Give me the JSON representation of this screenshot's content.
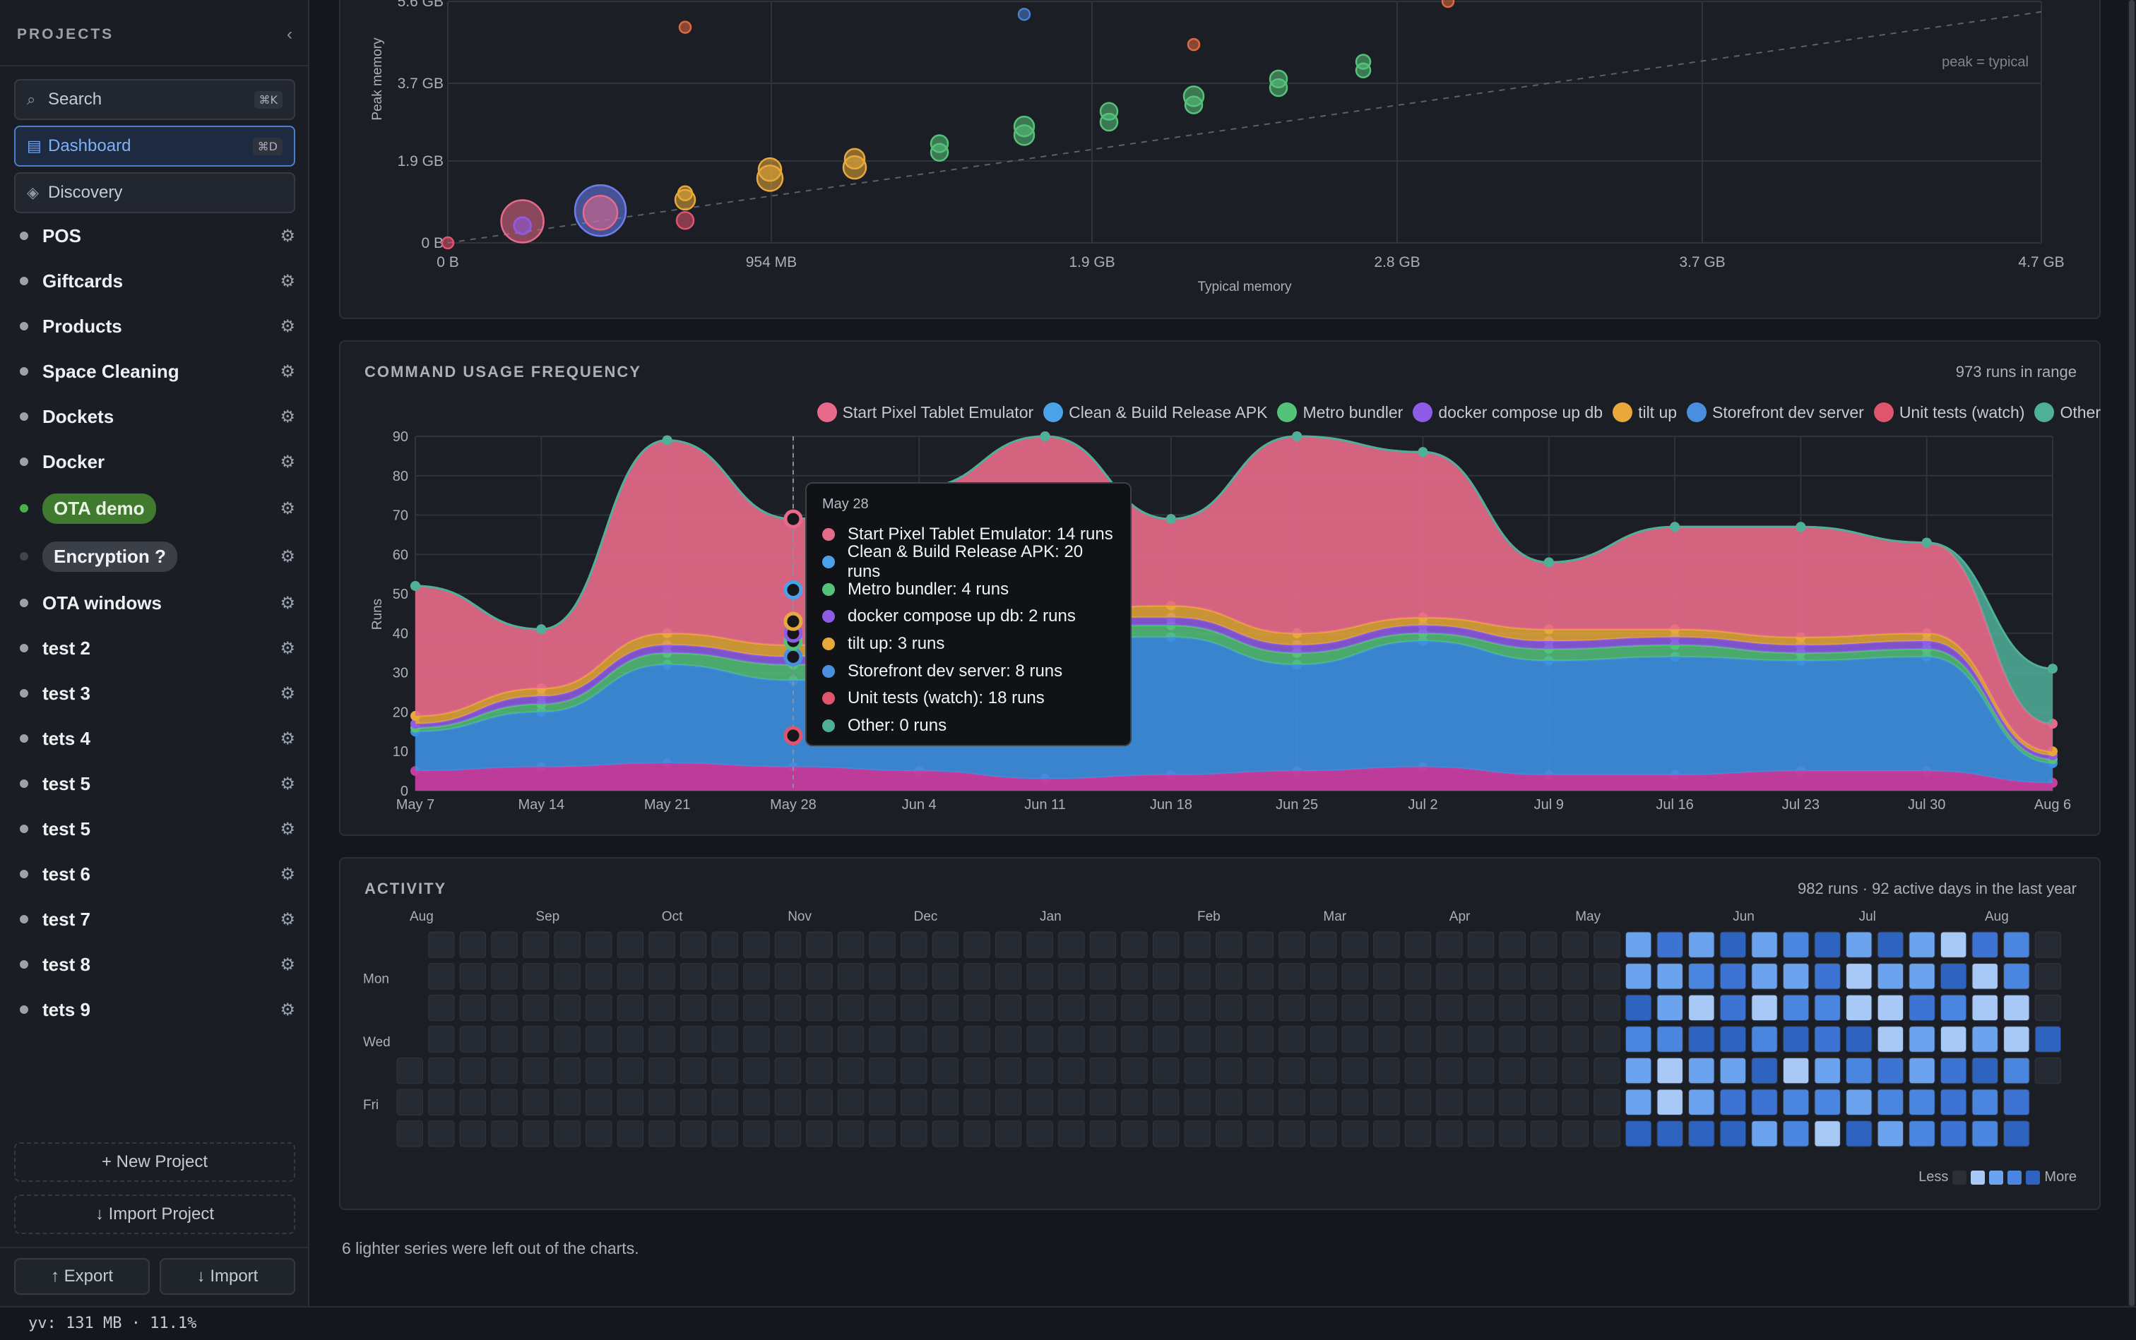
{
  "sidebar": {
    "title": "PROJECTS",
    "collapse_icon": "chevron-left-icon",
    "search": {
      "label": "Search",
      "shortcut": "⌘K"
    },
    "dashboard": {
      "label": "Dashboard",
      "shortcut": "⌘D"
    },
    "discovery": {
      "label": "Discovery"
    },
    "projects": [
      {
        "name": "POS",
        "dot": "#9ba2ad"
      },
      {
        "name": "Giftcards",
        "dot": "#9ba2ad"
      },
      {
        "name": "Products",
        "dot": "#9ba2ad"
      },
      {
        "name": "Space Cleaning",
        "dot": "#9ba2ad"
      },
      {
        "name": "Dockets",
        "dot": "#9ba2ad"
      },
      {
        "name": "Docker",
        "dot": "#9ba2ad"
      },
      {
        "name": "OTA demo",
        "dot": "#49b04a",
        "pill": "green"
      },
      {
        "name": "Encryption ?",
        "dot": "#3f444d",
        "pill": "grey"
      },
      {
        "name": "OTA windows",
        "dot": "#9ba2ad"
      },
      {
        "name": "test 2",
        "dot": "#9ba2ad"
      },
      {
        "name": "test 3",
        "dot": "#9ba2ad"
      },
      {
        "name": "tets 4",
        "dot": "#9ba2ad"
      },
      {
        "name": "test 5",
        "dot": "#9ba2ad"
      },
      {
        "name": "test 5",
        "dot": "#9ba2ad"
      },
      {
        "name": "test 6",
        "dot": "#9ba2ad"
      },
      {
        "name": "test 7",
        "dot": "#9ba2ad"
      },
      {
        "name": "test 8",
        "dot": "#9ba2ad"
      },
      {
        "name": "tets 9",
        "dot": "#9ba2ad"
      }
    ],
    "new_project": "+ New Project",
    "import_project": "↓ Import Project",
    "export": "↑ Export",
    "import": "↓ Import"
  },
  "status": {
    "text": "yv: 131 MB · 11.1%"
  },
  "memory": {
    "ylabel": "Peak memory",
    "xlabel": "Typical memory",
    "ref_label": "peak = typical"
  },
  "usage": {
    "title": "COMMAND USAGE FREQUENCY",
    "meta": "973 runs in range",
    "ylabel": "Runs"
  },
  "tooltip": {
    "date": "May 28",
    "rows": [
      {
        "text": "Start Pixel Tablet Emulator: 14 runs",
        "color": "#e86a8a"
      },
      {
        "text": "Clean & Build Release APK: 20 runs",
        "color": "#4aa3e8"
      },
      {
        "text": "Metro bundler: 4 runs",
        "color": "#55c27a"
      },
      {
        "text": "docker compose up db: 2 runs",
        "color": "#8f5ce8"
      },
      {
        "text": "tilt up: 3 runs",
        "color": "#e8a93a"
      },
      {
        "text": "Storefront dev server: 8 runs",
        "color": "#4a8ee0"
      },
      {
        "text": "Unit tests (watch): 18 runs",
        "color": "#e0546e"
      },
      {
        "text": "Other: 0 runs",
        "color": "#4fb09a"
      }
    ]
  },
  "activity": {
    "title": "ACTIVITY",
    "meta": "982 runs · 92 active days in the last year",
    "months": [
      "Aug",
      "Sep",
      "Oct",
      "Nov",
      "Dec",
      "Jan",
      "Feb",
      "Mar",
      "Apr",
      "May",
      "Jun",
      "Jul",
      "Aug"
    ],
    "days": [
      "Mon",
      "Wed",
      "Fri"
    ],
    "less": "Less",
    "more": "More"
  },
  "note": "6 lighter series were left out of the charts.",
  "chart_data": [
    {
      "type": "scatter",
      "title": "",
      "xlabel": "Typical memory",
      "ylabel": "Peak memory",
      "x_ticks": [
        "0 B",
        "954 MB",
        "1.9 GB",
        "2.8 GB",
        "3.7 GB",
        "4.7 GB"
      ],
      "y_ticks": [
        "0 B",
        "1.9 GB",
        "3.7 GB",
        "5.6 GB"
      ],
      "xlim_gb": [
        0,
        4.7
      ],
      "ylim_gb": [
        0,
        5.6
      ],
      "reference_line": "peak = typical",
      "points": [
        {
          "x": 0.0,
          "y": 0.0,
          "r": 8,
          "color": "#e0546e"
        },
        {
          "x": 0.22,
          "y": 0.5,
          "r": 30,
          "color": "#e86a8a"
        },
        {
          "x": 0.22,
          "y": 0.4,
          "r": 12,
          "color": "#8f5ce8"
        },
        {
          "x": 0.45,
          "y": 0.75,
          "r": 36,
          "color": "#6c7ef0"
        },
        {
          "x": 0.45,
          "y": 0.7,
          "r": 24,
          "color": "#e86a8a"
        },
        {
          "x": 0.7,
          "y": 0.52,
          "r": 12,
          "color": "#e0546e"
        },
        {
          "x": 0.7,
          "y": 1.0,
          "r": 14,
          "color": "#e8a93a"
        },
        {
          "x": 0.7,
          "y": 1.15,
          "r": 10,
          "color": "#e8a93a"
        },
        {
          "x": 0.7,
          "y": 5.0,
          "r": 8,
          "color": "#e06a40"
        },
        {
          "x": 0.95,
          "y": 1.5,
          "r": 18,
          "color": "#e8a93a"
        },
        {
          "x": 0.95,
          "y": 1.7,
          "r": 16,
          "color": "#e8a93a"
        },
        {
          "x": 1.2,
          "y": 1.75,
          "r": 16,
          "color": "#e8a93a"
        },
        {
          "x": 1.2,
          "y": 1.95,
          "r": 14,
          "color": "#e8a93a"
        },
        {
          "x": 1.45,
          "y": 2.1,
          "r": 12,
          "color": "#55c27a"
        },
        {
          "x": 1.45,
          "y": 2.3,
          "r": 12,
          "color": "#55c27a"
        },
        {
          "x": 1.7,
          "y": 2.5,
          "r": 14,
          "color": "#55c27a"
        },
        {
          "x": 1.7,
          "y": 2.7,
          "r": 14,
          "color": "#55c27a"
        },
        {
          "x": 1.7,
          "y": 5.3,
          "r": 8,
          "color": "#4a7fd0"
        },
        {
          "x": 1.95,
          "y": 2.8,
          "r": 12,
          "color": "#55c27a"
        },
        {
          "x": 1.95,
          "y": 3.05,
          "r": 12,
          "color": "#55c27a"
        },
        {
          "x": 2.2,
          "y": 3.2,
          "r": 12,
          "color": "#55c27a"
        },
        {
          "x": 2.2,
          "y": 3.4,
          "r": 14,
          "color": "#55c27a"
        },
        {
          "x": 2.2,
          "y": 4.6,
          "r": 8,
          "color": "#e06a40"
        },
        {
          "x": 2.45,
          "y": 3.6,
          "r": 12,
          "color": "#55c27a"
        },
        {
          "x": 2.45,
          "y": 3.8,
          "r": 12,
          "color": "#55c27a"
        },
        {
          "x": 2.7,
          "y": 4.0,
          "r": 10,
          "color": "#55c27a"
        },
        {
          "x": 2.7,
          "y": 4.2,
          "r": 10,
          "color": "#55c27a"
        },
        {
          "x": 2.95,
          "y": 5.6,
          "r": 8,
          "color": "#e06a40"
        }
      ]
    },
    {
      "type": "area",
      "stacked": true,
      "title": "COMMAND USAGE FREQUENCY",
      "xlabel": "",
      "ylabel": "Runs",
      "ylim": [
        0,
        90
      ],
      "x": [
        "May 7",
        "May 14",
        "May 21",
        "May 28",
        "Jun 4",
        "Jun 11",
        "Jun 18",
        "Jun 25",
        "Jul 2",
        "Jul 9",
        "Jul 16",
        "Jul 23",
        "Jul 30",
        "Aug 6"
      ],
      "series": [
        {
          "name": "Start Pixel Tablet Emulator",
          "color": "#e86a8a",
          "values": [
            25,
            5,
            35,
            14,
            22,
            42,
            14,
            40,
            30,
            9,
            18,
            18,
            13,
            3
          ]
        },
        {
          "name": "Clean & Build Release APK",
          "color": "#4aa3e8",
          "values": [
            5,
            6,
            13,
            20,
            18,
            19,
            20,
            14,
            17,
            16,
            17,
            16,
            16,
            3
          ]
        },
        {
          "name": "Metro bundler",
          "color": "#55c27a",
          "values": [
            1,
            2,
            3,
            4,
            3,
            3,
            3,
            3,
            2,
            3,
            3,
            2,
            2,
            1
          ]
        },
        {
          "name": "docker compose up db",
          "color": "#8f5ce8",
          "values": [
            1,
            2,
            2,
            2,
            2,
            2,
            2,
            2,
            2,
            2,
            2,
            2,
            2,
            1
          ]
        },
        {
          "name": "tilt up",
          "color": "#e8a93a",
          "values": [
            2,
            2,
            3,
            3,
            2,
            2,
            3,
            3,
            2,
            3,
            2,
            2,
            2,
            1
          ]
        },
        {
          "name": "Storefront dev server",
          "color": "#4a8ee0",
          "values": [
            10,
            14,
            19,
            8,
            18,
            20,
            19,
            18,
            21,
            17,
            17,
            17,
            18,
            4
          ]
        },
        {
          "name": "Unit tests (watch)",
          "color": "#e0546e",
          "values": [
            8,
            10,
            14,
            18,
            12,
            6,
            8,
            10,
            12,
            8,
            8,
            10,
            10,
            4
          ]
        },
        {
          "name": "Other",
          "color": "#4fb09a",
          "values": [
            0,
            0,
            0,
            0,
            0,
            0,
            0,
            0,
            0,
            0,
            0,
            0,
            0,
            14
          ]
        }
      ]
    }
  ]
}
